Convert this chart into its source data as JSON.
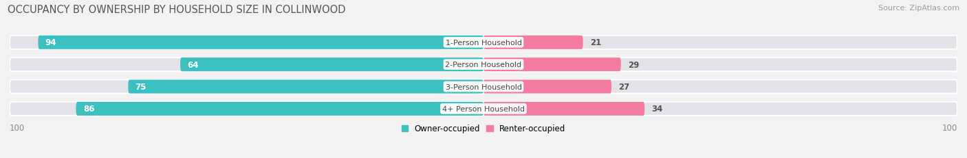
{
  "title": "OCCUPANCY BY OWNERSHIP BY HOUSEHOLD SIZE IN COLLINWOOD",
  "source": "Source: ZipAtlas.com",
  "categories": [
    "1-Person Household",
    "2-Person Household",
    "3-Person Household",
    "4+ Person Household"
  ],
  "owner_values": [
    94,
    64,
    75,
    86
  ],
  "renter_values": [
    21,
    29,
    27,
    34
  ],
  "owner_color": "#3bbfbf",
  "renter_color": "#f47ca0",
  "owner_label": "Owner-occupied",
  "renter_label": "Renter-occupied",
  "axis_max": 100,
  "bar_height": 0.62,
  "background_color": "#f2f2f2",
  "track_color": "#e2e2e8",
  "label_fontsize": 8.5,
  "title_fontsize": 10.5,
  "source_fontsize": 8,
  "value_fontsize": 8.5,
  "cat_fontsize": 8
}
